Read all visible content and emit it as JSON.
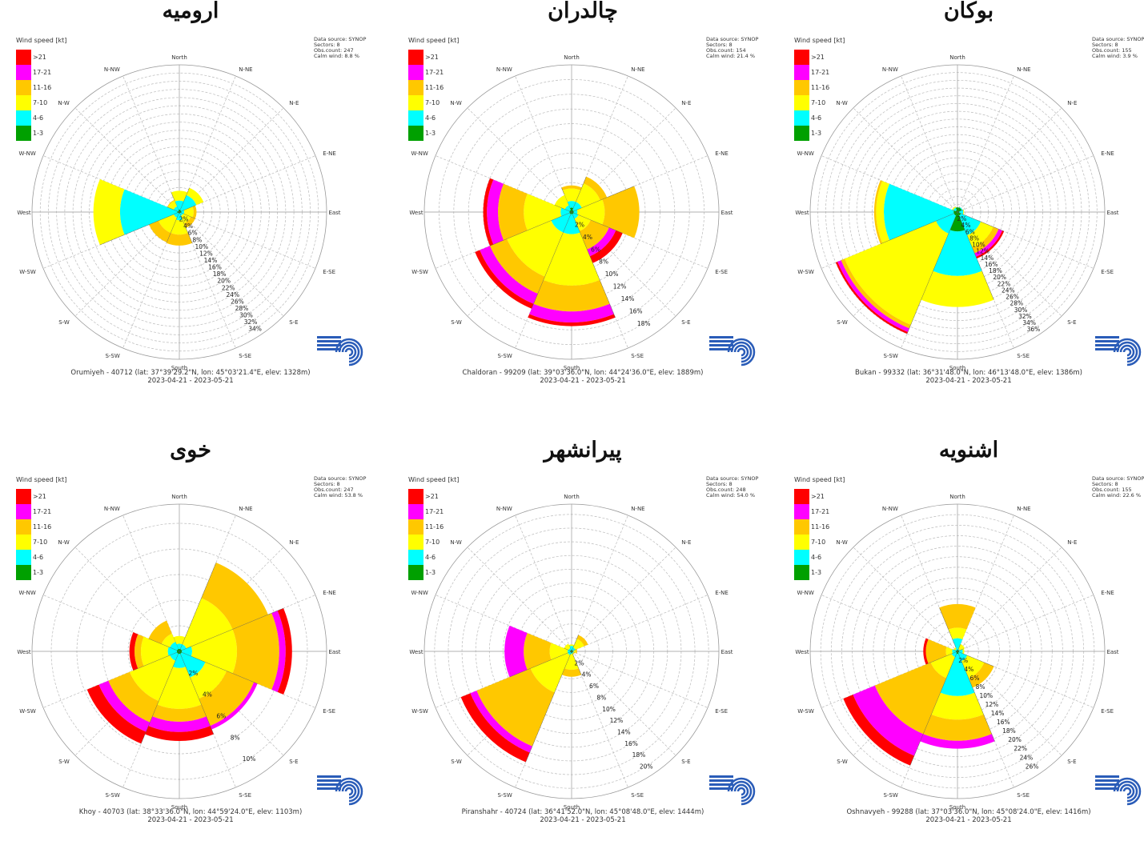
{
  "speed_bins": [
    {
      "label": ">21",
      "color": "#ff0000"
    },
    {
      "label": "17-21",
      "color": "#ff00ff"
    },
    {
      "label": "11-16",
      "color": "#ffc800"
    },
    {
      "label": "7-10",
      "color": "#ffff00"
    },
    {
      "label": "4-6",
      "color": "#00ffff"
    },
    {
      "label": "1-3",
      "color": "#00a000"
    }
  ],
  "legend_title": "Wind speed [kt]",
  "directions": [
    "North",
    "N-NE",
    "N-E",
    "E-NE",
    "East",
    "E-SE",
    "S-E",
    "S-SE",
    "South",
    "S-SW",
    "S-W",
    "W-SW",
    "West",
    "W-NW",
    "N-W",
    "N-NW"
  ],
  "charts": [
    {
      "title": "ارومیه",
      "info": [
        "Data source: SYNOP",
        "Sectors: 8",
        "Obs.count: 247",
        "Calm wind: 8.8 %"
      ],
      "footer_station": "Orumiyeh - 40712 (lat: 37°39'29.2\"N, lon: 45°03'21.4\"E, elev: 1328m)",
      "footer_period": "2023-04-21 - 2023-05-21",
      "chart_data": {
        "type": "windrose",
        "sector_width": 45,
        "rmax": 36,
        "ring_labels": [
          "2%",
          "4%",
          "6%",
          "8%",
          "10%",
          "12%",
          "14%",
          "16%",
          "18%",
          "20%",
          "22%",
          "24%",
          "26%",
          "28%",
          "30%",
          "32%",
          "34%"
        ],
        "sectors": [
          {
            "dir": "North",
            "cum": [
              0.6,
              2.8,
              5.2,
              5.2,
              5.2,
              5.2
            ]
          },
          {
            "dir": "N-E",
            "cum": [
              0.5,
              4.5,
              6.4,
              6.4,
              6.4,
              6.4
            ]
          },
          {
            "dir": "East",
            "cum": [
              0.5,
              1.2,
              3.5,
              4.2,
              4.2,
              4.2
            ]
          },
          {
            "dir": "S-E",
            "cum": [
              0.3,
              1.0,
              3.0,
              4.2,
              4.2,
              4.2
            ]
          },
          {
            "dir": "South",
            "cum": [
              0.3,
              2.0,
              5.5,
              8.2,
              8.2,
              8.2
            ]
          },
          {
            "dir": "S-W",
            "cum": [
              0.3,
              1.5,
              5.5,
              8.0,
              8.0,
              8.0
            ]
          },
          {
            "dir": "West",
            "cum": [
              0.5,
              14.5,
              21.0,
              21.0,
              21.0,
              21.0
            ]
          },
          {
            "dir": "N-W",
            "cum": [
              0.3,
              1.5,
              3.0,
              3.2,
              3.2,
              3.2
            ]
          }
        ]
      }
    },
    {
      "title": "چالدران",
      "info": [
        "Data source: SYNOP",
        "Sectors: 8",
        "Obs.count: 154",
        "Calm wind: 21.4 %"
      ],
      "footer_station": "Chaldoran - 99209 (lat: 39°03'36.0\"N, lon: 44°24'36.0\"E, elev: 1889m)",
      "footer_period": "2023-04-21 - 2023-05-21",
      "chart_data": {
        "type": "windrose",
        "sector_width": 45,
        "rmax": 20,
        "ring_labels": [
          "2%",
          "4%",
          "6%",
          "8%",
          "10%",
          "12%",
          "14%",
          "16%",
          "18%"
        ],
        "sectors": [
          {
            "dir": "North",
            "cum": [
              0.6,
              1.5,
              3.2,
              3.6,
              3.6,
              3.6
            ]
          },
          {
            "dir": "N-E",
            "cum": [
              0.3,
              1.5,
              4.2,
              5.2,
              5.2,
              5.2
            ]
          },
          {
            "dir": "East",
            "cum": [
              0.3,
              0.8,
              4.5,
              9.2,
              9.2,
              9.2
            ]
          },
          {
            "dir": "S-E",
            "cum": [
              0.3,
              1.0,
              2.8,
              5.5,
              6.5,
              7.5
            ]
          },
          {
            "dir": "South",
            "cum": [
              0.3,
              3.0,
              10.0,
              13.5,
              15.0,
              15.5
            ]
          },
          {
            "dir": "S-W",
            "cum": [
              0.3,
              3.0,
              9.5,
              12.0,
              13.5,
              14.2
            ]
          },
          {
            "dir": "West",
            "cum": [
              0.3,
              1.5,
              6.5,
              10.0,
              11.5,
              12.0
            ]
          },
          {
            "dir": "N-W",
            "cum": [
              0.3,
              1.0,
              2.5,
              2.5,
              2.5,
              2.5
            ]
          }
        ]
      }
    },
    {
      "title": "بوکان",
      "info": [
        "Data source: SYNOP",
        "Sectors: 8",
        "Obs.count: 155",
        "Calm wind: 3.9 %"
      ],
      "footer_station": "Bukan - 99332 (lat: 36°31'48.0\"N, lon: 46°13'48.0\"E, elev: 1386m)",
      "footer_period": "2023-04-21 - 2023-05-21",
      "chart_data": {
        "type": "windrose",
        "sector_width": 45,
        "rmax": 38,
        "ring_labels": [
          "2%",
          "4%",
          "6%",
          "8%",
          "10%",
          "12%",
          "14%",
          "16%",
          "18%",
          "20%",
          "22%",
          "24%",
          "26%",
          "28%",
          "30%",
          "32%",
          "34%",
          "36%"
        ],
        "sectors": [
          {
            "dir": "North",
            "cum": [
              1.2,
              1.2,
              1.2,
              1.2,
              1.2,
              1.2
            ]
          },
          {
            "dir": "N-E",
            "cum": [
              1.2,
              1.4,
              1.4,
              1.4,
              1.4,
              1.4
            ]
          },
          {
            "dir": "East",
            "cum": [
              0.5,
              1.5,
              1.7,
              1.7,
              1.7,
              1.7
            ]
          },
          {
            "dir": "S-E",
            "cum": [
              1.0,
              6.5,
              10.0,
              11.5,
              12.5,
              13.0
            ]
          },
          {
            "dir": "South",
            "cum": [
              5.0,
              16.5,
              24.5,
              24.5,
              24.5,
              24.5
            ]
          },
          {
            "dir": "S-W",
            "cum": [
              1.0,
              6.0,
              31.5,
              32.5,
              33.5,
              34.0
            ]
          },
          {
            "dir": "West",
            "cum": [
              1.0,
              19.0,
              21.0,
              21.5,
              21.5,
              21.5
            ]
          },
          {
            "dir": "N-W",
            "cum": [
              0.5,
              1.2,
              1.5,
              1.5,
              1.5,
              1.5
            ]
          }
        ]
      }
    },
    {
      "title": "خوی",
      "info": [
        "Data source: SYNOP",
        "Sectors: 8",
        "Obs.count: 247",
        "Calm wind: 53.8 %"
      ],
      "footer_station": "Khoy - 40703 (lat: 38°33'36.0\"N, lon: 44°59'24.0\"E, elev: 1103m)",
      "footer_period": "2023-04-21 - 2023-05-21",
      "chart_data": {
        "type": "windrose",
        "sector_width": 45,
        "rmax": 11.5,
        "ring_labels": [
          "2%",
          "4%",
          "6%",
          "8%",
          "10%"
        ],
        "sectors": [
          {
            "dir": "North",
            "cum": [
              0.2,
              0.6,
              1.2,
              1.2,
              1.2,
              1.2
            ]
          },
          {
            "dir": "N-E",
            "cum": [
              0.2,
              0.6,
              4.5,
              7.5,
              7.5,
              7.5
            ]
          },
          {
            "dir": "East",
            "cum": [
              0.2,
              1.0,
              4.5,
              7.8,
              8.3,
              8.8
            ]
          },
          {
            "dir": "S-E",
            "cum": [
              0.2,
              2.2,
              4.0,
              6.3,
              6.6,
              6.6
            ]
          },
          {
            "dir": "South",
            "cum": [
              0.2,
              1.3,
              4.5,
              5.5,
              6.3,
              7.0
            ]
          },
          {
            "dir": "S-W",
            "cum": [
              0.2,
              0.8,
              4.2,
              6.0,
              6.8,
              7.8
            ]
          },
          {
            "dir": "West",
            "cum": [
              0.2,
              0.9,
              3.0,
              3.5,
              3.5,
              3.9
            ]
          },
          {
            "dir": "N-W",
            "cum": [
              0.2,
              0.8,
              1.5,
              2.6,
              2.6,
              2.6
            ]
          }
        ]
      }
    },
    {
      "title": "پیرانشهر",
      "info": [
        "Data source: SYNOP",
        "Sectors: 8",
        "Obs.count: 248",
        "Calm wind: 54.0 %"
      ],
      "footer_station": "Piranshahr - 40724 (lat: 36°41'52.0\"N, lon: 45°08'48.0\"E, elev: 1444m)",
      "footer_period": "2023-04-21 - 2023-05-21",
      "chart_data": {
        "type": "windrose",
        "sector_width": 45,
        "rmax": 21.5,
        "ring_labels": [
          "2%",
          "4%",
          "6%",
          "8%",
          "10%",
          "12%",
          "14%",
          "16%",
          "18%",
          "20%"
        ],
        "sectors": [
          {
            "dir": "North",
            "cum": [
              0.2,
              0.8,
              1.0,
              1.0,
              1.0,
              1.0
            ]
          },
          {
            "dir": "N-E",
            "cum": [
              0.2,
              0.6,
              2.0,
              2.6,
              2.6,
              2.6
            ]
          },
          {
            "dir": "East",
            "cum": [
              0.2,
              0.3,
              0.6,
              0.8,
              0.8,
              0.8
            ]
          },
          {
            "dir": "S-E",
            "cum": [
              0.2,
              0.3,
              0.4,
              0.5,
              0.5,
              0.5
            ]
          },
          {
            "dir": "South",
            "cum": [
              0.2,
              0.4,
              2.7,
              3.7,
              3.7,
              3.7
            ]
          },
          {
            "dir": "S-W",
            "cum": [
              0.2,
              0.6,
              6.5,
              15.0,
              16.0,
              17.5
            ]
          },
          {
            "dir": "West",
            "cum": [
              0.2,
              0.6,
              3.2,
              7.0,
              9.8,
              9.8
            ]
          },
          {
            "dir": "N-W",
            "cum": [
              0.2,
              0.5,
              1.2,
              1.2,
              1.2,
              1.2
            ]
          }
        ]
      }
    },
    {
      "title": "اشنویه",
      "info": [
        "Data source: SYNOP",
        "Sectors: 8",
        "Obs.count: 155",
        "Calm wind: 22.6 %"
      ],
      "footer_station": "Oshnavyeh - 99288 (lat: 37°03'36.0\"N, lon: 45°08'24.0\"E, elev: 1416m)",
      "footer_period": "2023-04-21 - 2023-05-21",
      "chart_data": {
        "type": "windrose",
        "sector_width": 45,
        "rmax": 28,
        "ring_labels": [
          "2%",
          "4%",
          "6%",
          "8%",
          "10%",
          "12%",
          "14%",
          "16%",
          "18%",
          "20%",
          "22%",
          "24%",
          "26%"
        ],
        "sectors": [
          {
            "dir": "North",
            "cum": [
              0.3,
              2.5,
              4.5,
              9.0,
              9.0,
              9.0
            ]
          },
          {
            "dir": "N-E",
            "cum": [
              0.3,
              0.5,
              1.5,
              1.5,
              1.5,
              1.5
            ]
          },
          {
            "dir": "East",
            "cum": [
              0.3,
              1.0,
              1.3,
              1.3,
              1.3,
              1.3
            ]
          },
          {
            "dir": "S-E",
            "cum": [
              0.3,
              2.0,
              5.5,
              7.5,
              7.5,
              7.5
            ]
          },
          {
            "dir": "South",
            "cum": [
              0.5,
              8.5,
              13.0,
              17.0,
              18.5,
              18.5
            ]
          },
          {
            "dir": "S-W",
            "cum": [
              0.3,
              1.2,
              5.5,
              17.0,
              21.5,
              23.5
            ]
          },
          {
            "dir": "West",
            "cum": [
              0.3,
              1.0,
              2.2,
              6.0,
              6.0,
              6.5
            ]
          },
          {
            "dir": "N-W",
            "cum": [
              0.2,
              0.5,
              0.8,
              0.8,
              0.8,
              0.8
            ]
          }
        ]
      }
    }
  ]
}
